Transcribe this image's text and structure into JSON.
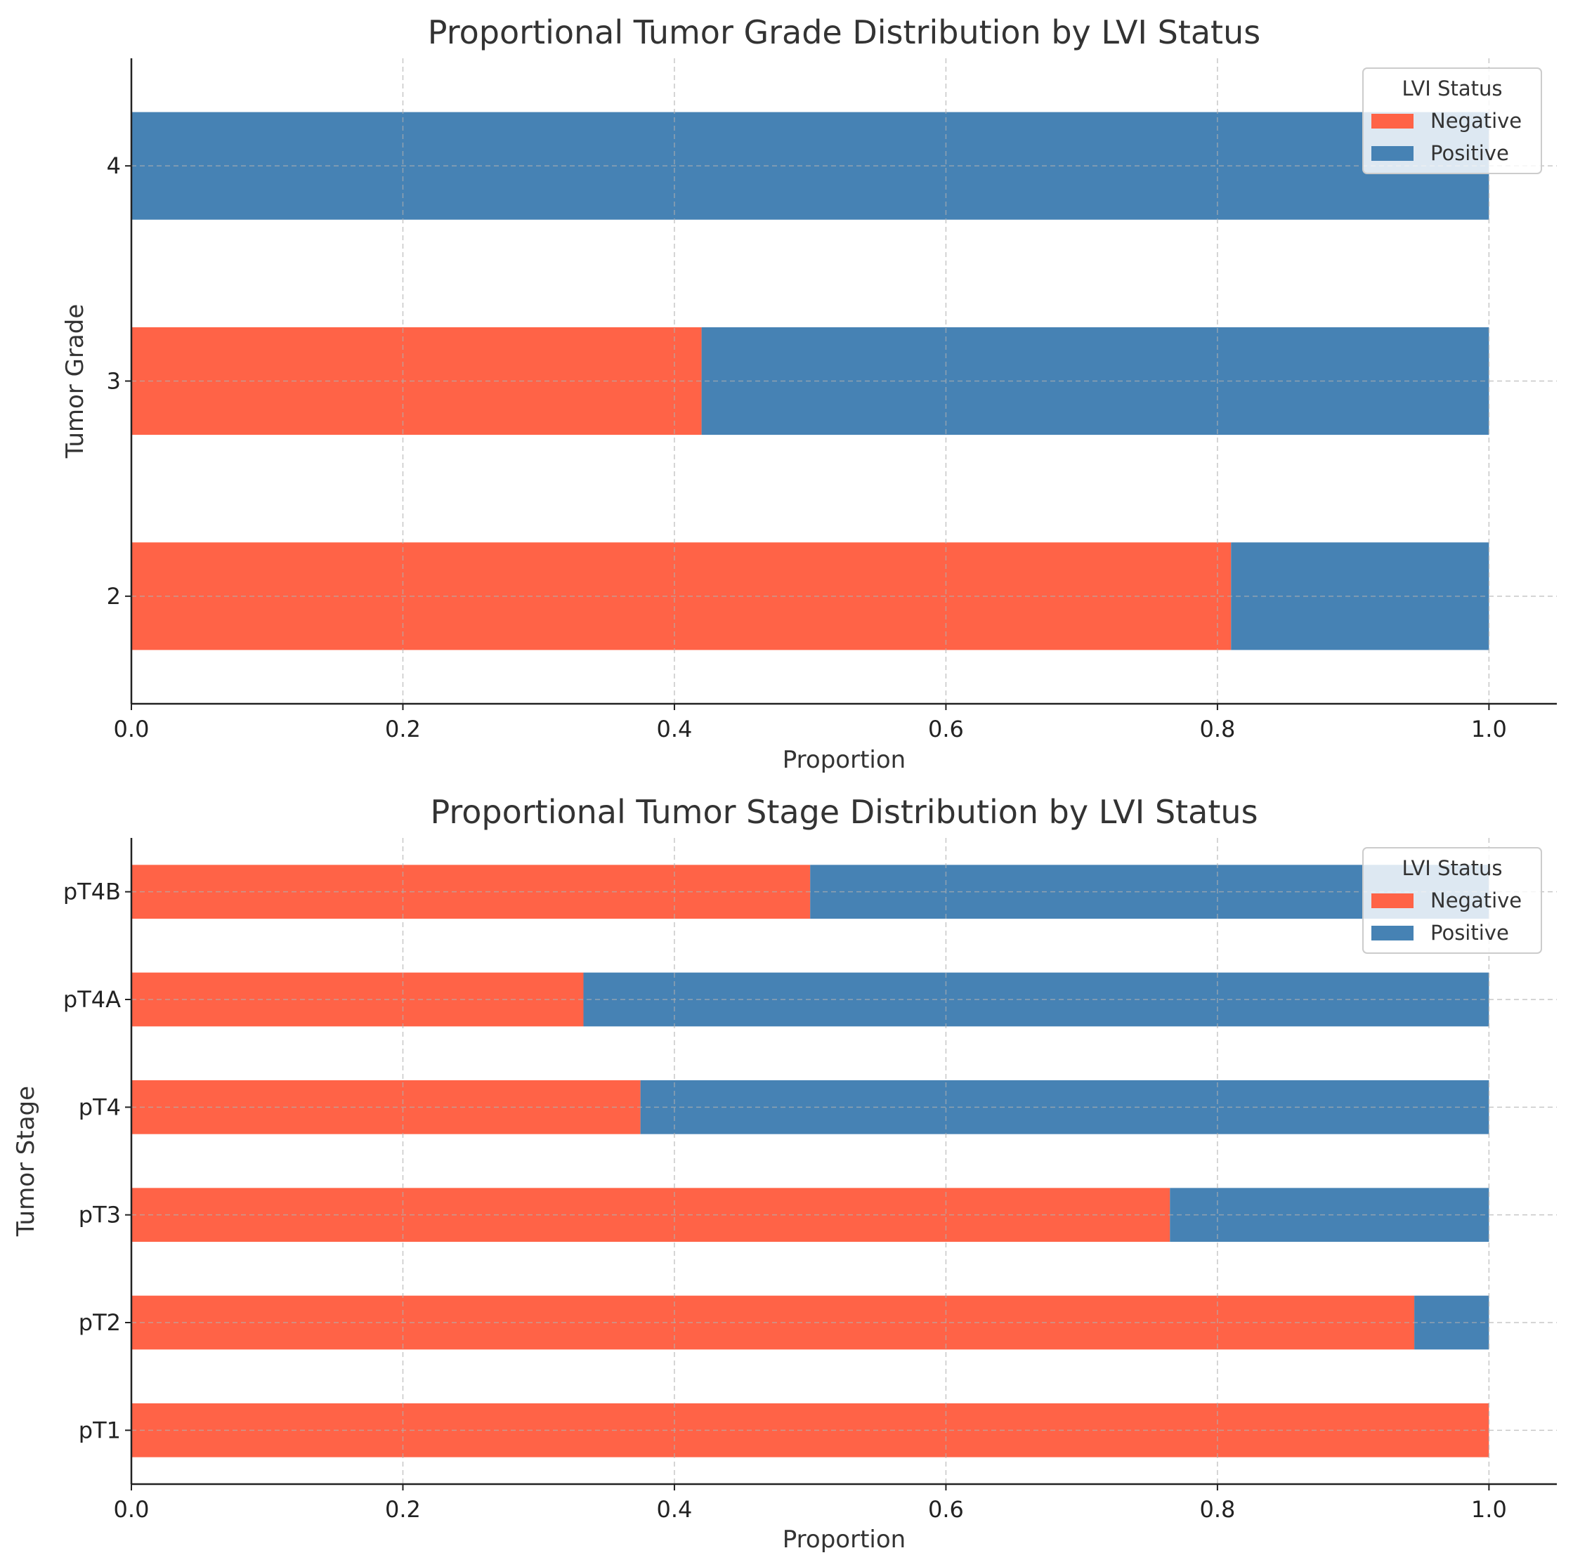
{
  "legend": {
    "title": "LVI Status",
    "entries": [
      "Negative",
      "Positive"
    ],
    "placement": "top-right"
  },
  "colors": {
    "Negative": "#FF6347",
    "Positive": "#4682B4"
  },
  "chart_data": [
    {
      "type": "bar",
      "orientation": "horizontal-stacked",
      "title": "Proportional Tumor Grade Distribution by LVI Status",
      "xlabel": "Proportion",
      "ylabel": "Tumor Grade",
      "xlim": [
        0.0,
        1.05
      ],
      "xticks": [
        "0.0",
        "0.2",
        "0.4",
        "0.6",
        "0.8",
        "1.0"
      ],
      "grid": true,
      "categories": [
        "2",
        "3",
        "4"
      ],
      "series": [
        {
          "name": "Negative",
          "values": [
            0.81,
            0.42,
            0.0
          ]
        },
        {
          "name": "Positive",
          "values": [
            0.19,
            0.58,
            1.0
          ]
        }
      ]
    },
    {
      "type": "bar",
      "orientation": "horizontal-stacked",
      "title": "Proportional Tumor Stage Distribution by LVI Status",
      "xlabel": "Proportion",
      "ylabel": "Tumor Stage",
      "xlim": [
        0.0,
        1.05
      ],
      "xticks": [
        "0.0",
        "0.2",
        "0.4",
        "0.6",
        "0.8",
        "1.0"
      ],
      "grid": true,
      "categories": [
        "pT1",
        "pT2",
        "pT3",
        "pT4",
        "pT4A",
        "pT4B"
      ],
      "series": [
        {
          "name": "Negative",
          "values": [
            1.0,
            0.945,
            0.765,
            0.375,
            0.333,
            0.5
          ]
        },
        {
          "name": "Positive",
          "values": [
            0.0,
            0.055,
            0.235,
            0.625,
            0.667,
            0.5
          ]
        }
      ]
    }
  ]
}
